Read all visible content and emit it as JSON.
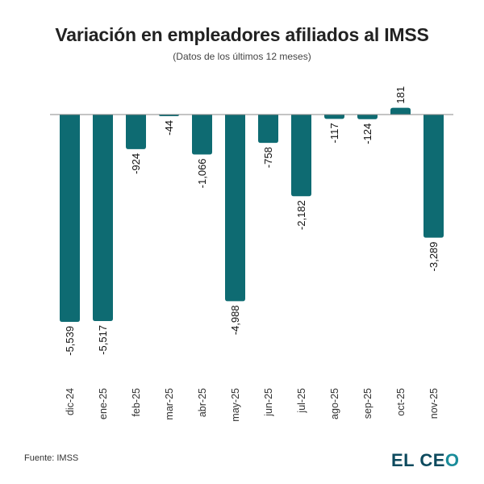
{
  "header": {
    "title": "Variación en empleadores afiliados al IMSS",
    "subtitle": "(Datos de los últimos 12 meses)"
  },
  "footer": {
    "source": "Fuente: IMSS",
    "logo_text_main": "EL CE",
    "logo_text_accent": "O"
  },
  "colors": {
    "bar": "#0e6b72",
    "axis": "#888888",
    "label": "#111111",
    "tick": "#333333"
  },
  "chart_data": {
    "type": "bar",
    "title": "Variación en empleadores afiliados al IMSS",
    "subtitle": "(Datos de los últimos 12 meses)",
    "xlabel": "",
    "ylabel": "",
    "grid": false,
    "legend": "none",
    "categories": [
      "dic-24",
      "ene-25",
      "feb-25",
      "mar-25",
      "abr-25",
      "may-25",
      "jun-25",
      "jul-25",
      "ago-25",
      "sep-25",
      "oct-25",
      "nov-25"
    ],
    "values": [
      -5539,
      -5517,
      -924,
      -44,
      -1066,
      -4988,
      -758,
      -2182,
      -117,
      -124,
      181,
      -3289
    ],
    "data_labels": [
      "-5,539",
      "-5,517",
      "-924",
      "-44",
      "-1,066",
      "-4,988",
      "-758",
      "-2,182",
      "-117",
      "-124",
      "181",
      "-3,289"
    ],
    "ylim": [
      -5539,
      181
    ]
  }
}
